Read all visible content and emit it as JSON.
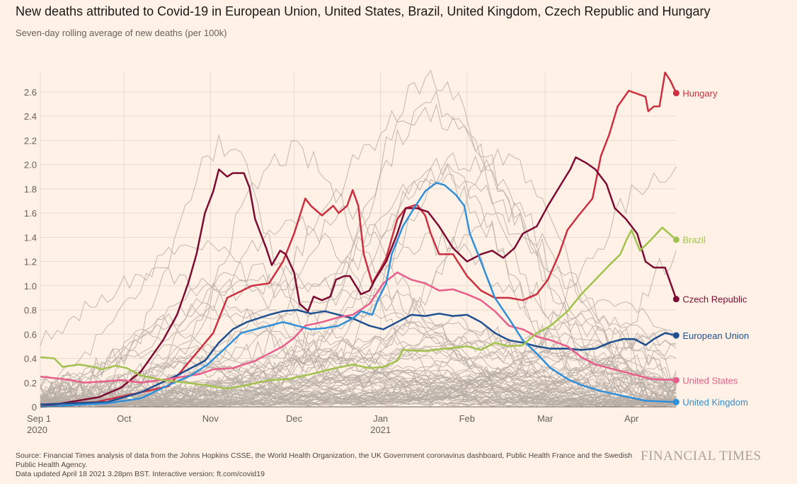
{
  "title": "New deaths attributed to Covid-19 in European Union, United States, Brazil, United Kingdom, Czech Republic and Hungary",
  "subtitle": "Seven-day rolling average of new deaths (per 100k)",
  "footer": {
    "source": "Source: Financial Times analysis of data from the Johns Hopkins CSSE, the World Health Organization, the UK Government coronavirus dashboard, Public Health France and the Swedish Public Health Agency.",
    "updated": "Data updated April 18 2021 3.28pm BST. Interactive version: ft.com/covid19",
    "logo": "FINANCIAL TIMES"
  },
  "chart_data": {
    "type": "line",
    "title": "New deaths attributed to Covid-19 in European Union, United States, Brazil, United Kingdom, Czech Republic and Hungary",
    "ylabel": "Seven-day rolling average of new deaths (per 100k)",
    "x_unit": "days since Sep 1 2020",
    "xlim": [
      0,
      228
    ],
    "ylim": [
      0,
      2.8
    ],
    "yticks": [
      "0",
      "0.2",
      "0.4",
      "0.6",
      "0.8",
      "1.0",
      "1.2",
      "1.4",
      "1.6",
      "1.8",
      "2.0",
      "2.2",
      "2.4",
      "2.6"
    ],
    "ytick_values": [
      0,
      0.2,
      0.4,
      0.6,
      0.8,
      1.0,
      1.2,
      1.4,
      1.6,
      1.8,
      2.0,
      2.2,
      2.4,
      2.6
    ],
    "xticks": [
      {
        "day": 0,
        "label": "Sep 1",
        "sub": "2020"
      },
      {
        "day": 30,
        "label": "Oct",
        "sub": ""
      },
      {
        "day": 61,
        "label": "Nov",
        "sub": ""
      },
      {
        "day": 91,
        "label": "Dec",
        "sub": ""
      },
      {
        "day": 122,
        "label": "Jan",
        "sub": "2021"
      },
      {
        "day": 153,
        "label": "Feb",
        "sub": ""
      },
      {
        "day": 181,
        "label": "Mar",
        "sub": ""
      },
      {
        "day": 212,
        "label": "Apr",
        "sub": ""
      }
    ],
    "grid": true,
    "background_series_color": "#b7ada4",
    "series": [
      {
        "name": "Hungary",
        "color": "#cc2f3f",
        "x": [
          0,
          20,
          46,
          62,
          67,
          76,
          82,
          87,
          91,
          95,
          97,
          101,
          105,
          107,
          110,
          112,
          114,
          116,
          119,
          122,
          124,
          128,
          131,
          135,
          138,
          140,
          143,
          148,
          153,
          158,
          163,
          168,
          173,
          178,
          182,
          186,
          189,
          193,
          198,
          201,
          204,
          207,
          211,
          217,
          218,
          220,
          222,
          224,
          226,
          228
        ],
        "y": [
          0.02,
          0.04,
          0.17,
          0.61,
          0.9,
          1.0,
          1.02,
          1.2,
          1.43,
          1.72,
          1.66,
          1.58,
          1.66,
          1.6,
          1.66,
          1.79,
          1.66,
          1.26,
          1.02,
          1.14,
          1.23,
          1.55,
          1.64,
          1.67,
          1.58,
          1.43,
          1.26,
          1.26,
          1.08,
          0.96,
          0.9,
          0.9,
          0.88,
          0.93,
          1.05,
          1.26,
          1.46,
          1.58,
          1.72,
          2.07,
          2.25,
          2.48,
          2.61,
          2.56,
          2.44,
          2.48,
          2.48,
          2.76,
          2.69,
          2.59
        ]
      },
      {
        "name": "Czech Republic",
        "color": "#7d0b33",
        "x": [
          0,
          21,
          29,
          36,
          44,
          49,
          53,
          56,
          59,
          62,
          64,
          67,
          69,
          73,
          75,
          77,
          81,
          83,
          86,
          88,
          91,
          93,
          96,
          98,
          101,
          104,
          106,
          109,
          111,
          115,
          118,
          120,
          124,
          128,
          131,
          135,
          139,
          143,
          148,
          153,
          158,
          162,
          166,
          170,
          173,
          178,
          182,
          186,
          190,
          192,
          196,
          199,
          203,
          206,
          210,
          214,
          217,
          220,
          224,
          228
        ],
        "y": [
          0,
          0.08,
          0.16,
          0.29,
          0.55,
          0.76,
          1.02,
          1.26,
          1.6,
          1.78,
          1.96,
          1.9,
          1.93,
          1.93,
          1.81,
          1.55,
          1.31,
          1.17,
          1.29,
          1.26,
          1.11,
          0.85,
          0.79,
          0.91,
          0.88,
          0.91,
          1.05,
          1.08,
          1.08,
          0.93,
          0.96,
          1.05,
          1.2,
          1.43,
          1.64,
          1.64,
          1.61,
          1.49,
          1.31,
          1.2,
          1.26,
          1.29,
          1.23,
          1.31,
          1.43,
          1.49,
          1.66,
          1.81,
          1.96,
          2.06,
          2.01,
          1.96,
          1.84,
          1.64,
          1.55,
          1.43,
          1.2,
          1.15,
          1.15,
          0.89
        ]
      },
      {
        "name": "European Union",
        "color": "#1d4f91",
        "x": [
          0,
          24,
          36,
          49,
          59,
          64,
          69,
          74,
          82,
          87,
          92,
          97,
          102,
          107,
          112,
          118,
          123,
          128,
          133,
          138,
          143,
          148,
          153,
          158,
          163,
          168,
          173,
          178,
          183,
          189,
          194,
          199,
          204,
          209,
          213,
          217,
          220,
          224,
          228
        ],
        "y": [
          0.02,
          0.04,
          0.12,
          0.26,
          0.38,
          0.53,
          0.64,
          0.7,
          0.76,
          0.79,
          0.8,
          0.77,
          0.79,
          0.76,
          0.73,
          0.67,
          0.64,
          0.7,
          0.76,
          0.75,
          0.77,
          0.75,
          0.76,
          0.7,
          0.61,
          0.55,
          0.53,
          0.5,
          0.48,
          0.48,
          0.47,
          0.48,
          0.53,
          0.56,
          0.56,
          0.51,
          0.56,
          0.61,
          0.59
        ]
      },
      {
        "name": "United States",
        "color": "#e95d8c",
        "x": [
          0,
          8,
          16,
          29,
          36,
          46,
          57,
          62,
          69,
          77,
          82,
          87,
          91,
          95,
          101,
          107,
          112,
          118,
          123,
          128,
          133,
          138,
          143,
          148,
          153,
          158,
          163,
          168,
          173,
          178,
          183,
          189,
          194,
          199,
          204,
          209,
          214,
          219,
          228
        ],
        "y": [
          0.25,
          0.23,
          0.2,
          0.22,
          0.2,
          0.23,
          0.27,
          0.31,
          0.32,
          0.38,
          0.44,
          0.5,
          0.57,
          0.67,
          0.7,
          0.74,
          0.76,
          0.85,
          1.02,
          1.11,
          1.05,
          1.02,
          0.96,
          0.97,
          0.93,
          0.88,
          0.79,
          0.67,
          0.64,
          0.58,
          0.55,
          0.5,
          0.41,
          0.35,
          0.32,
          0.29,
          0.26,
          0.23,
          0.22
        ]
      },
      {
        "name": "United Kingdom",
        "color": "#2f8fd8",
        "x": [
          0,
          24,
          36,
          46,
          54,
          60,
          67,
          72,
          77,
          82,
          87,
          92,
          97,
          102,
          107,
          112,
          115,
          119,
          121,
          124,
          126,
          130,
          134,
          138,
          142,
          145,
          149,
          152,
          154,
          158,
          163,
          168,
          173,
          178,
          183,
          189,
          194,
          201,
          209,
          217,
          228
        ],
        "y": [
          0,
          0.03,
          0.07,
          0.18,
          0.26,
          0.35,
          0.5,
          0.61,
          0.64,
          0.67,
          0.7,
          0.67,
          0.64,
          0.65,
          0.67,
          0.73,
          0.79,
          0.76,
          0.88,
          1.02,
          1.26,
          1.49,
          1.64,
          1.78,
          1.85,
          1.83,
          1.75,
          1.66,
          1.43,
          1.2,
          0.9,
          0.73,
          0.55,
          0.44,
          0.32,
          0.23,
          0.18,
          0.13,
          0.09,
          0.05,
          0.04
        ]
      },
      {
        "name": "Brazil",
        "color": "#a1c24c",
        "x": [
          0,
          5,
          8,
          14,
          19,
          22,
          27,
          31,
          36,
          44,
          52,
          59,
          67,
          74,
          82,
          89,
          97,
          104,
          112,
          118,
          123,
          128,
          130,
          138,
          145,
          153,
          158,
          163,
          168,
          173,
          178,
          183,
          189,
          194,
          199,
          204,
          208,
          210,
          212,
          215,
          219,
          223,
          228
        ],
        "y": [
          0.41,
          0.4,
          0.33,
          0.35,
          0.33,
          0.31,
          0.34,
          0.32,
          0.26,
          0.22,
          0.2,
          0.18,
          0.15,
          0.18,
          0.22,
          0.23,
          0.27,
          0.31,
          0.35,
          0.32,
          0.33,
          0.38,
          0.47,
          0.46,
          0.48,
          0.5,
          0.47,
          0.53,
          0.5,
          0.51,
          0.61,
          0.67,
          0.79,
          0.93,
          1.05,
          1.17,
          1.26,
          1.37,
          1.46,
          1.29,
          1.38,
          1.48,
          1.38
        ]
      }
    ]
  }
}
